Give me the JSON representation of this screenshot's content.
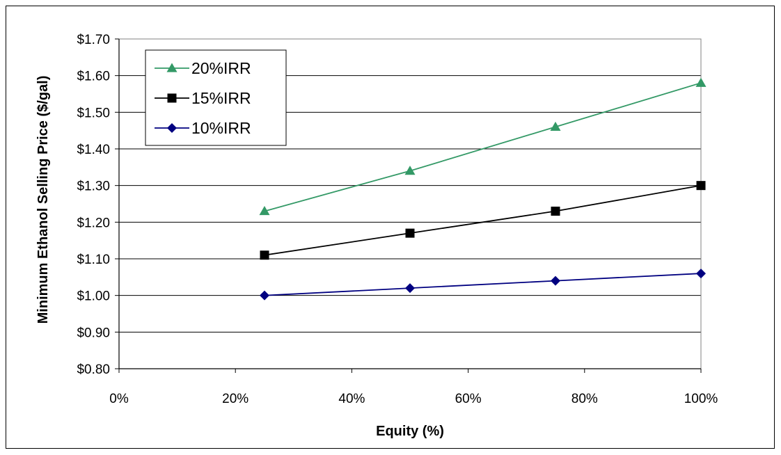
{
  "chart_data": {
    "type": "line",
    "xlabel": "Equity (%)",
    "ylabel": "Minimum Ethanol Selling Price ($/gal)",
    "xlim": [
      0,
      100
    ],
    "ylim": [
      0.8,
      1.7
    ],
    "x_ticks": [
      "0%",
      "20%",
      "40%",
      "60%",
      "80%",
      "100%"
    ],
    "y_ticks": [
      "$0.80",
      "$0.90",
      "$1.00",
      "$1.10",
      "$1.20",
      "$1.30",
      "$1.40",
      "$1.50",
      "$1.60",
      "$1.70"
    ],
    "grid": "horizontal",
    "legend_position": "top-left",
    "x": [
      25,
      50,
      75,
      100
    ],
    "series": [
      {
        "name": "20%IRR",
        "values": [
          1.23,
          1.34,
          1.46,
          1.58
        ],
        "color": "#339966",
        "marker": "triangle"
      },
      {
        "name": "15%IRR",
        "values": [
          1.11,
          1.17,
          1.23,
          1.3
        ],
        "color": "#000000",
        "marker": "square"
      },
      {
        "name": "10%IRR",
        "values": [
          1.0,
          1.02,
          1.04,
          1.06
        ],
        "color": "#000080",
        "marker": "diamond"
      }
    ]
  }
}
